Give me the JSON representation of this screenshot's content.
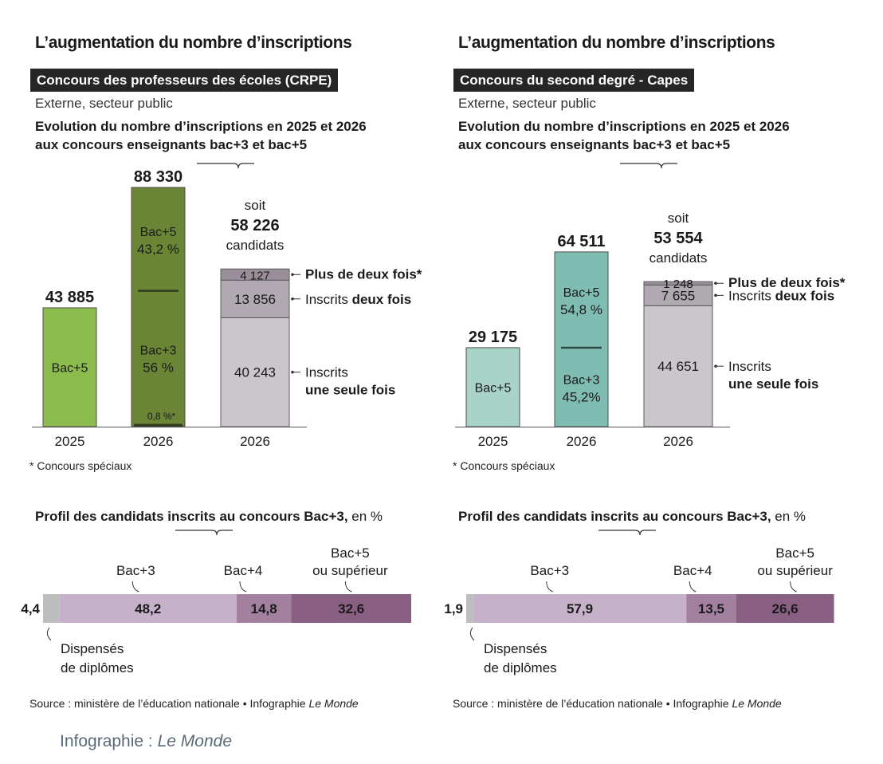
{
  "credit": {
    "label": "Infographie :",
    "brand": "Le Monde"
  },
  "colors": {
    "rule": "#8a8a8a",
    "text": "#1a1a1a",
    "dark_badge": "#262626"
  },
  "chart_data": [
    {
      "type": "bar",
      "title": "L’augmentation du nombre d’inscriptions",
      "badge": "Concours des professeurs des écoles (CRPE)",
      "subtitle": "Externe, secteur public",
      "heading_line1": "Evolution du nombre d’inscriptions en 2025 et 2026",
      "heading_line2": "aux concours enseignants bac+3 et  bac+5",
      "footnote": "* Concours spéciaux",
      "colors": {
        "bac5_2025": "#8dbc4e",
        "bac_2026": "#6b8536",
        "rule": "#2f3d1c",
        "seg_once": "#cbc6cc",
        "seg_twice": "#b0a9b1",
        "seg_more": "#9a8e9b"
      },
      "bars": [
        {
          "year": "2025",
          "total": 43885,
          "total_label": "43 885",
          "seg_label": "Bac+5"
        },
        {
          "year": "2026",
          "total": 88330,
          "total_label": "88 330",
          "bac5_label": "Bac+5",
          "bac5_pct": "43,2 %",
          "bac3_label": "Bac+3",
          "bac3_pct": "56 %",
          "special_pct": "0,8 %*",
          "shares": {
            "bac5": 43.2,
            "bac3": 56,
            "special": 0.8
          }
        }
      ],
      "candidates": {
        "year": "2026",
        "prefix": "soit",
        "total": 58226,
        "total_label": "58 226",
        "suffix": "candidats",
        "segments": [
          {
            "value": 40243,
            "label": "40 243",
            "text": "Inscrits",
            "bold": "une seule fois"
          },
          {
            "value": 13856,
            "label": "13 856",
            "text": "Inscrits",
            "bold": "deux fois"
          },
          {
            "value": 4127,
            "label": "4 127",
            "text": "",
            "bold": "Plus de deux fois*"
          }
        ]
      },
      "profile": {
        "title_bold": "Profil des candidats inscrits au concours Bac+3,",
        "title_unit": "en %",
        "segments": [
          {
            "name": "Dispensés de diplômes",
            "line1": "Dispensés",
            "line2": "de diplômes",
            "value": 4.4,
            "label": "4,4",
            "color": "#bdbdbd"
          },
          {
            "name": "Bac+3",
            "line1": "Bac+3",
            "line2": "",
            "value": 48.2,
            "label": "48,2",
            "color": "#c5b1c9"
          },
          {
            "name": "Bac+4",
            "line1": "Bac+4",
            "line2": "",
            "value": 14.8,
            "label": "14,8",
            "color": "#a3809f"
          },
          {
            "name": "Bac+5 ou supérieur",
            "line1": "Bac+5",
            "line2": "ou supérieur",
            "value": 32.6,
            "label": "32,6",
            "color": "#8a5f84"
          }
        ]
      },
      "source": {
        "text": "Source : ministère de l’éducation nationale • Infographie",
        "brand": "Le Monde"
      }
    },
    {
      "type": "bar",
      "title": "L’augmentation du nombre d’inscriptions",
      "badge": "Concours du second degré - Capes",
      "subtitle": "Externe, secteur public",
      "heading_line1": "Evolution du nombre d’inscriptions en 2025 et 2026",
      "heading_line2": "aux concours enseignants bac+3 et  bac+5",
      "footnote": "* Concours spéciaux",
      "colors": {
        "bac5_2025": "#a9d2c8",
        "bac_2026": "#7fbcb2",
        "rule": "#2c4a44",
        "seg_once": "#cbc6cc",
        "seg_twice": "#b0a9b1",
        "seg_more": "#9a8e9b"
      },
      "bars": [
        {
          "year": "2025",
          "total": 29175,
          "total_label": "29 175",
          "seg_label": "Bac+5"
        },
        {
          "year": "2026",
          "total": 64511,
          "total_label": "64 511",
          "bac5_label": "Bac+5",
          "bac5_pct": "54,8 %",
          "bac3_label": "Bac+3",
          "bac3_pct": "45,2%",
          "shares": {
            "bac5": 54.8,
            "bac3": 45.2
          }
        }
      ],
      "candidates": {
        "year": "2026",
        "prefix": "soit",
        "total": 53554,
        "total_label": "53 554",
        "suffix": "candidats",
        "segments": [
          {
            "value": 44651,
            "label": "44 651",
            "text": "Inscrits",
            "bold": "une seule fois"
          },
          {
            "value": 7655,
            "label": "7 655",
            "text": "Inscrits",
            "bold": "deux fois"
          },
          {
            "value": 1248,
            "label": "1 248",
            "text": "",
            "bold": "Plus de deux fois*"
          }
        ]
      },
      "profile": {
        "title_bold": "Profil des candidats inscrits au concours Bac+3,",
        "title_unit": "en %",
        "segments": [
          {
            "name": "Dispensés de diplômes",
            "line1": "Dispensés",
            "line2": "de diplômes",
            "value": 1.9,
            "label": "1,9",
            "color": "#bdbdbd"
          },
          {
            "name": "Bac+3",
            "line1": "Bac+3",
            "line2": "",
            "value": 57.9,
            "label": "57,9",
            "color": "#c5b1c9"
          },
          {
            "name": "Bac+4",
            "line1": "Bac+4",
            "line2": "",
            "value": 13.5,
            "label": "13,5",
            "color": "#a3809f"
          },
          {
            "name": "Bac+5 ou supérieur",
            "line1": "Bac+5",
            "line2": "ou supérieur",
            "value": 26.6,
            "label": "26,6",
            "color": "#8a5f84"
          }
        ]
      },
      "source": {
        "text": "Source : ministère de l’éducation nationale • Infographie",
        "brand": "Le Monde"
      }
    }
  ]
}
